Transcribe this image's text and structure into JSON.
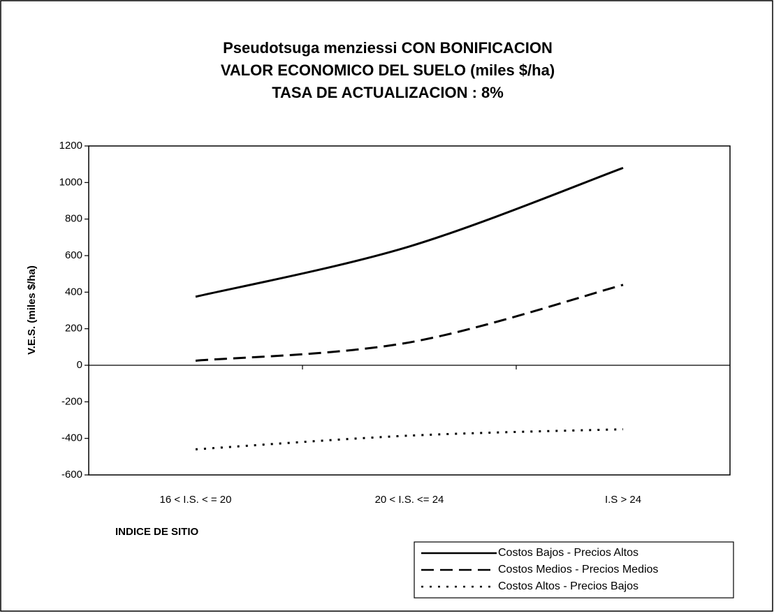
{
  "chart_data": {
    "type": "line",
    "title": [
      "Pseudotsuga menziessi CON BONIFICACION",
      "VALOR ECONOMICO DEL SUELO (miles $/ha)",
      "TASA DE ACTUALIZACION : 8%"
    ],
    "y_label": "V.E.S. (miles $/ha)",
    "x_label": "INDICE DE SITIO",
    "categories": [
      "16 <  I.S. < = 20",
      "20 < I.S. <= 24",
      "I.S > 24"
    ],
    "series": [
      {
        "name": "Costos Bajos - Precios Altos",
        "color": "#000000",
        "style": "solid",
        "values": [
          375,
          650,
          1080
        ]
      },
      {
        "name": "Costos Medios - Precios Medios",
        "color": "#000000",
        "style": "dashed",
        "values": [
          25,
          125,
          440
        ]
      },
      {
        "name": "Costos Altos - Precios Bajos",
        "color": "#000000",
        "style": "dotted",
        "values": [
          -460,
          -385,
          -350
        ]
      }
    ],
    "smooth": true,
    "ylim": [
      -600,
      1200
    ],
    "yticks": [
      -600,
      -400,
      -200,
      0,
      200,
      400,
      600,
      800,
      1000,
      1200
    ],
    "grid": false,
    "legend": "lower right"
  }
}
